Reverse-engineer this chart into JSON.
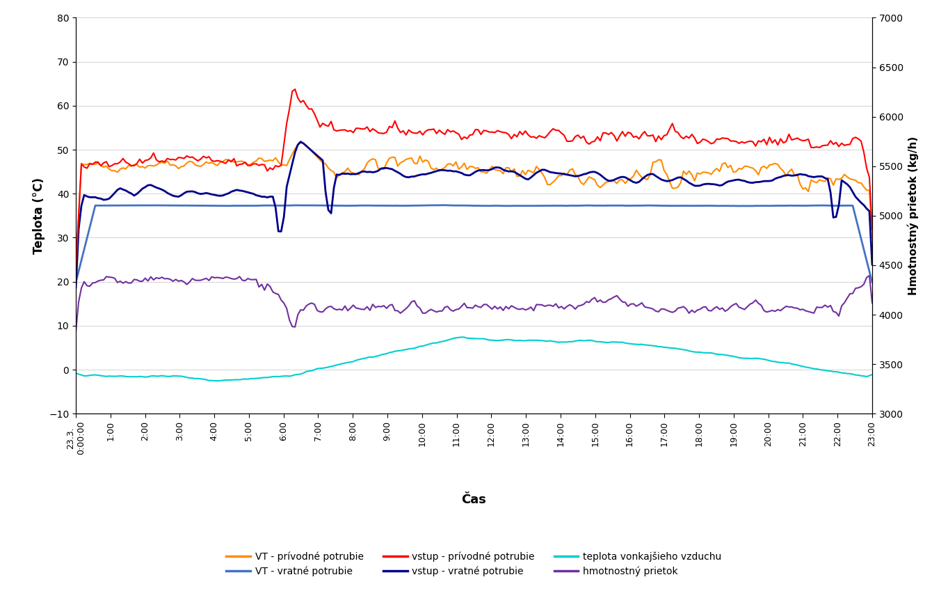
{
  "title": "",
  "xlabel": "Čas",
  "ylabel_left": "Teplota (°C)",
  "ylabel_right": "Hmotnostný prietok (kg/h)",
  "ylim_left": [
    -10,
    80
  ],
  "ylim_right": [
    3000,
    7000
  ],
  "yticks_left": [
    -10,
    0,
    10,
    20,
    30,
    40,
    50,
    60,
    70,
    80
  ],
  "yticks_right": [
    3000,
    3500,
    4000,
    4500,
    5000,
    5500,
    6000,
    6500,
    7000
  ],
  "xtick_labels": [
    "23.3.\n0:00:00",
    "1:00",
    "2:00",
    "3:00",
    "4:00",
    "5:00",
    "6:00",
    "7:00",
    "8:00",
    "9:00",
    "10:00",
    "11:00",
    "12:00",
    "13:00",
    "14:00",
    "15:00",
    "16:00",
    "17:00",
    "18:00",
    "19:00",
    "20:00",
    "21:00",
    "22:00",
    "23:00"
  ],
  "colors": {
    "VT_privod": "#FF8C00",
    "VT_vratne": "#4472C4",
    "vstup_privod": "#FF0000",
    "vstup_vratne": "#00008B",
    "teplota_vonk": "#00CFCF",
    "hmotnostny": "#7030A0"
  },
  "legend": [
    {
      "label": "VT - prívodné potrubie",
      "color": "#FF8C00"
    },
    {
      "label": "VT - vratné potrubie",
      "color": "#4472C4"
    },
    {
      "label": "vstup - prívodné potrubie",
      "color": "#FF0000"
    },
    {
      "label": "vstup - vratné potrubie",
      "color": "#00008B"
    },
    {
      "label": "teplota vonkajšieho vzduchu",
      "color": "#00CFCF"
    },
    {
      "label": "hmotnostný prietok",
      "color": "#7030A0"
    }
  ],
  "n_points": 288
}
